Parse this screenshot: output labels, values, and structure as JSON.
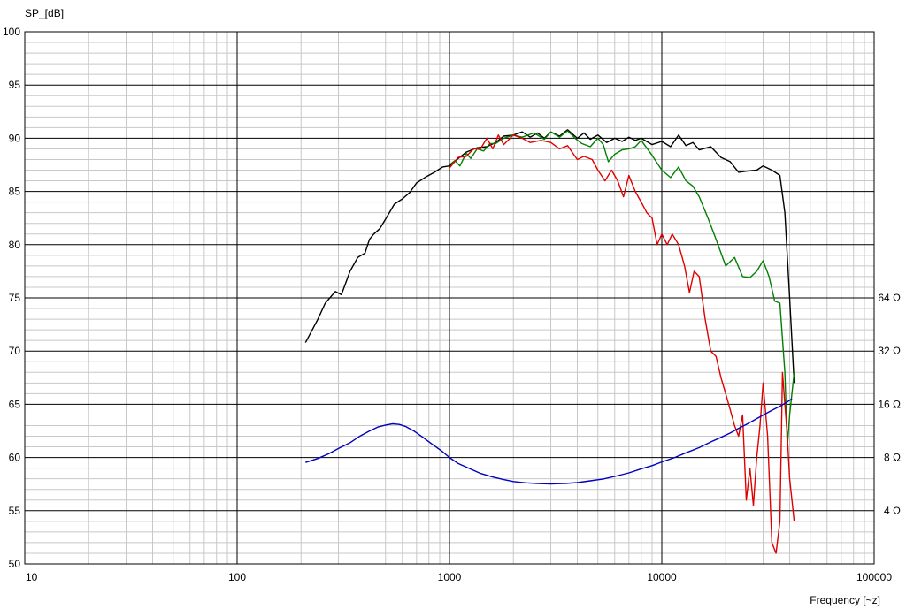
{
  "chart_data": {
    "type": "line",
    "title": "",
    "ylabel": "SP_[dB]",
    "xlabel": "Frequency [~z]",
    "xscale": "log",
    "xlim": [
      10,
      100000
    ],
    "ylim": [
      50,
      100
    ],
    "grid": true,
    "x_ticks": [
      {
        "value": 10,
        "label": "10"
      },
      {
        "value": 100,
        "label": "100"
      },
      {
        "value": 1000,
        "label": "1000"
      },
      {
        "value": 10000,
        "label": "10000"
      },
      {
        "value": 100000,
        "label": "100000"
      }
    ],
    "y_ticks": [
      {
        "value": 100,
        "label": "100"
      },
      {
        "value": 95,
        "label": "95"
      },
      {
        "value": 90,
        "label": "90"
      },
      {
        "value": 85,
        "label": "85"
      },
      {
        "value": 80,
        "label": "80"
      },
      {
        "value": 75,
        "label": "75"
      },
      {
        "value": 70,
        "label": "70"
      },
      {
        "value": 65,
        "label": "65"
      },
      {
        "value": 60,
        "label": "60"
      },
      {
        "value": 55,
        "label": "55"
      },
      {
        "value": 50,
        "label": "50"
      }
    ],
    "y2_ticks": [
      {
        "value": 64,
        "label": "64 Ω"
      },
      {
        "value": 32,
        "label": "32 Ω"
      },
      {
        "value": 16,
        "label": "16 Ω"
      },
      {
        "value": 8,
        "label": "8 Ω"
      },
      {
        "value": 4,
        "label": "4 Ω"
      }
    ],
    "y2scale": "log",
    "y2_map": {
      "ohm": [
        4,
        64
      ],
      "db": [
        55,
        75
      ]
    },
    "series": [
      {
        "color": "#000000",
        "axis": "y",
        "x": [
          210,
          240,
          260,
          290,
          310,
          340,
          370,
          400,
          420,
          440,
          470,
          500,
          550,
          600,
          650,
          700,
          780,
          850,
          930,
          1000,
          1100,
          1200,
          1350,
          1500,
          1650,
          1800,
          2000,
          2200,
          2400,
          2600,
          2800,
          3000,
          3300,
          3600,
          4000,
          4300,
          4600,
          5000,
          5500,
          6000,
          6500,
          7000,
          7500,
          8000,
          9000,
          10000,
          11000,
          12000,
          13000,
          14000,
          15000,
          17000,
          19000,
          21000,
          23000,
          25000,
          28000,
          30000,
          33000,
          36000,
          38000,
          40000,
          42000
        ],
        "y": [
          70.8,
          73.0,
          74.5,
          75.6,
          75.3,
          77.5,
          78.8,
          79.2,
          80.5,
          81.0,
          81.5,
          82.4,
          83.8,
          84.3,
          84.9,
          85.8,
          86.4,
          86.8,
          87.3,
          87.4,
          88.1,
          88.7,
          89.1,
          89.2,
          89.6,
          90.2,
          90.3,
          90.6,
          90.1,
          90.5,
          90.0,
          90.6,
          90.2,
          90.8,
          90.0,
          90.5,
          89.9,
          90.3,
          89.6,
          90.0,
          89.7,
          90.1,
          89.8,
          90.0,
          89.4,
          89.7,
          89.2,
          90.3,
          89.3,
          89.6,
          88.9,
          89.2,
          88.2,
          87.8,
          86.8,
          86.9,
          87.0,
          87.4,
          87.0,
          86.5,
          83.0,
          75.0,
          67.0
        ]
      },
      {
        "color": "#008000",
        "axis": "y",
        "x": [
          1000,
          1060,
          1120,
          1200,
          1260,
          1350,
          1450,
          1550,
          1650,
          1800,
          2000,
          2200,
          2500,
          2800,
          3000,
          3300,
          3600,
          3900,
          4200,
          4600,
          5000,
          5300,
          5600,
          6000,
          6500,
          7000,
          7500,
          8000,
          9000,
          10000,
          11000,
          12000,
          13000,
          14000,
          15000,
          16500,
          18000,
          20000,
          22000,
          24000,
          26000,
          28000,
          30000,
          32000,
          34000,
          36000,
          38000,
          39000,
          40000,
          42000
        ],
        "y": [
          87.5,
          87.9,
          87.4,
          88.6,
          88.1,
          89.0,
          88.8,
          89.5,
          89.5,
          90.0,
          90.3,
          90.1,
          90.5,
          89.9,
          90.6,
          90.1,
          90.7,
          90.0,
          89.5,
          89.2,
          90.0,
          89.4,
          87.8,
          88.5,
          88.9,
          89.0,
          89.2,
          89.8,
          88.4,
          87.0,
          86.3,
          87.3,
          86.0,
          85.5,
          84.5,
          82.5,
          80.5,
          78.0,
          78.8,
          77.0,
          76.9,
          77.5,
          78.5,
          77.0,
          74.7,
          74.5,
          68.0,
          61.0,
          64.0,
          68.0
        ]
      },
      {
        "color": "#e00000",
        "axis": "y",
        "x": [
          1000,
          1100,
          1200,
          1300,
          1400,
          1500,
          1600,
          1700,
          1800,
          2000,
          2200,
          2400,
          2700,
          3000,
          3300,
          3600,
          4000,
          4300,
          4700,
          5000,
          5400,
          5800,
          6200,
          6600,
          7000,
          7500,
          8000,
          8500,
          9000,
          9500,
          10000,
          10600,
          11200,
          12000,
          12800,
          13500,
          14200,
          15000,
          16000,
          17000,
          18000,
          19000,
          20000,
          21000,
          22000,
          23000,
          24000,
          25000,
          26000,
          27000,
          28000,
          29000,
          30000,
          31500,
          33000,
          34500,
          36000,
          37000,
          38000,
          39000,
          40000,
          41000,
          42000
        ],
        "y": [
          87.2,
          88.2,
          88.3,
          89.0,
          89.0,
          90.0,
          89.0,
          90.3,
          89.4,
          90.3,
          90.0,
          89.6,
          89.8,
          89.6,
          89.0,
          89.3,
          88.0,
          88.3,
          88.0,
          87.0,
          86.0,
          87.0,
          86.0,
          84.5,
          86.5,
          85.0,
          84.0,
          83.0,
          82.5,
          80.0,
          81.0,
          80.0,
          81.0,
          80.0,
          78.0,
          75.5,
          77.5,
          77.0,
          73.0,
          70.0,
          69.5,
          67.5,
          66.0,
          64.5,
          63.0,
          62.0,
          64.0,
          56.0,
          59.0,
          55.5,
          60.0,
          63.0,
          67.0,
          62.0,
          52.0,
          51.0,
          54.0,
          68.0,
          65.0,
          62.0,
          58.0,
          56.0,
          54.0
        ]
      },
      {
        "color": "#0000c0",
        "axis": "y2",
        "x": [
          210,
          240,
          270,
          300,
          340,
          380,
          420,
          460,
          500,
          540,
          580,
          620,
          680,
          750,
          830,
          920,
          1000,
          1100,
          1250,
          1400,
          1600,
          1800,
          2000,
          2300,
          2600,
          3000,
          3500,
          4000,
          4600,
          5300,
          6000,
          7000,
          8000,
          9000,
          10000,
          11500,
          13000,
          15000,
          17000,
          19000,
          21000,
          23000,
          25000,
          27500,
          30000,
          33000,
          36000,
          39000,
          41000
        ],
        "y": [
          7.5,
          7.9,
          8.4,
          9.0,
          9.7,
          10.6,
          11.3,
          11.9,
          12.2,
          12.4,
          12.3,
          12.0,
          11.3,
          10.4,
          9.5,
          8.7,
          8.0,
          7.4,
          6.9,
          6.5,
          6.2,
          6.0,
          5.85,
          5.75,
          5.7,
          5.67,
          5.7,
          5.77,
          5.9,
          6.05,
          6.25,
          6.55,
          6.9,
          7.2,
          7.55,
          8.0,
          8.5,
          9.1,
          9.8,
          10.4,
          11.0,
          11.7,
          12.3,
          13.1,
          13.9,
          14.8,
          15.6,
          16.5,
          17.2
        ]
      }
    ]
  }
}
